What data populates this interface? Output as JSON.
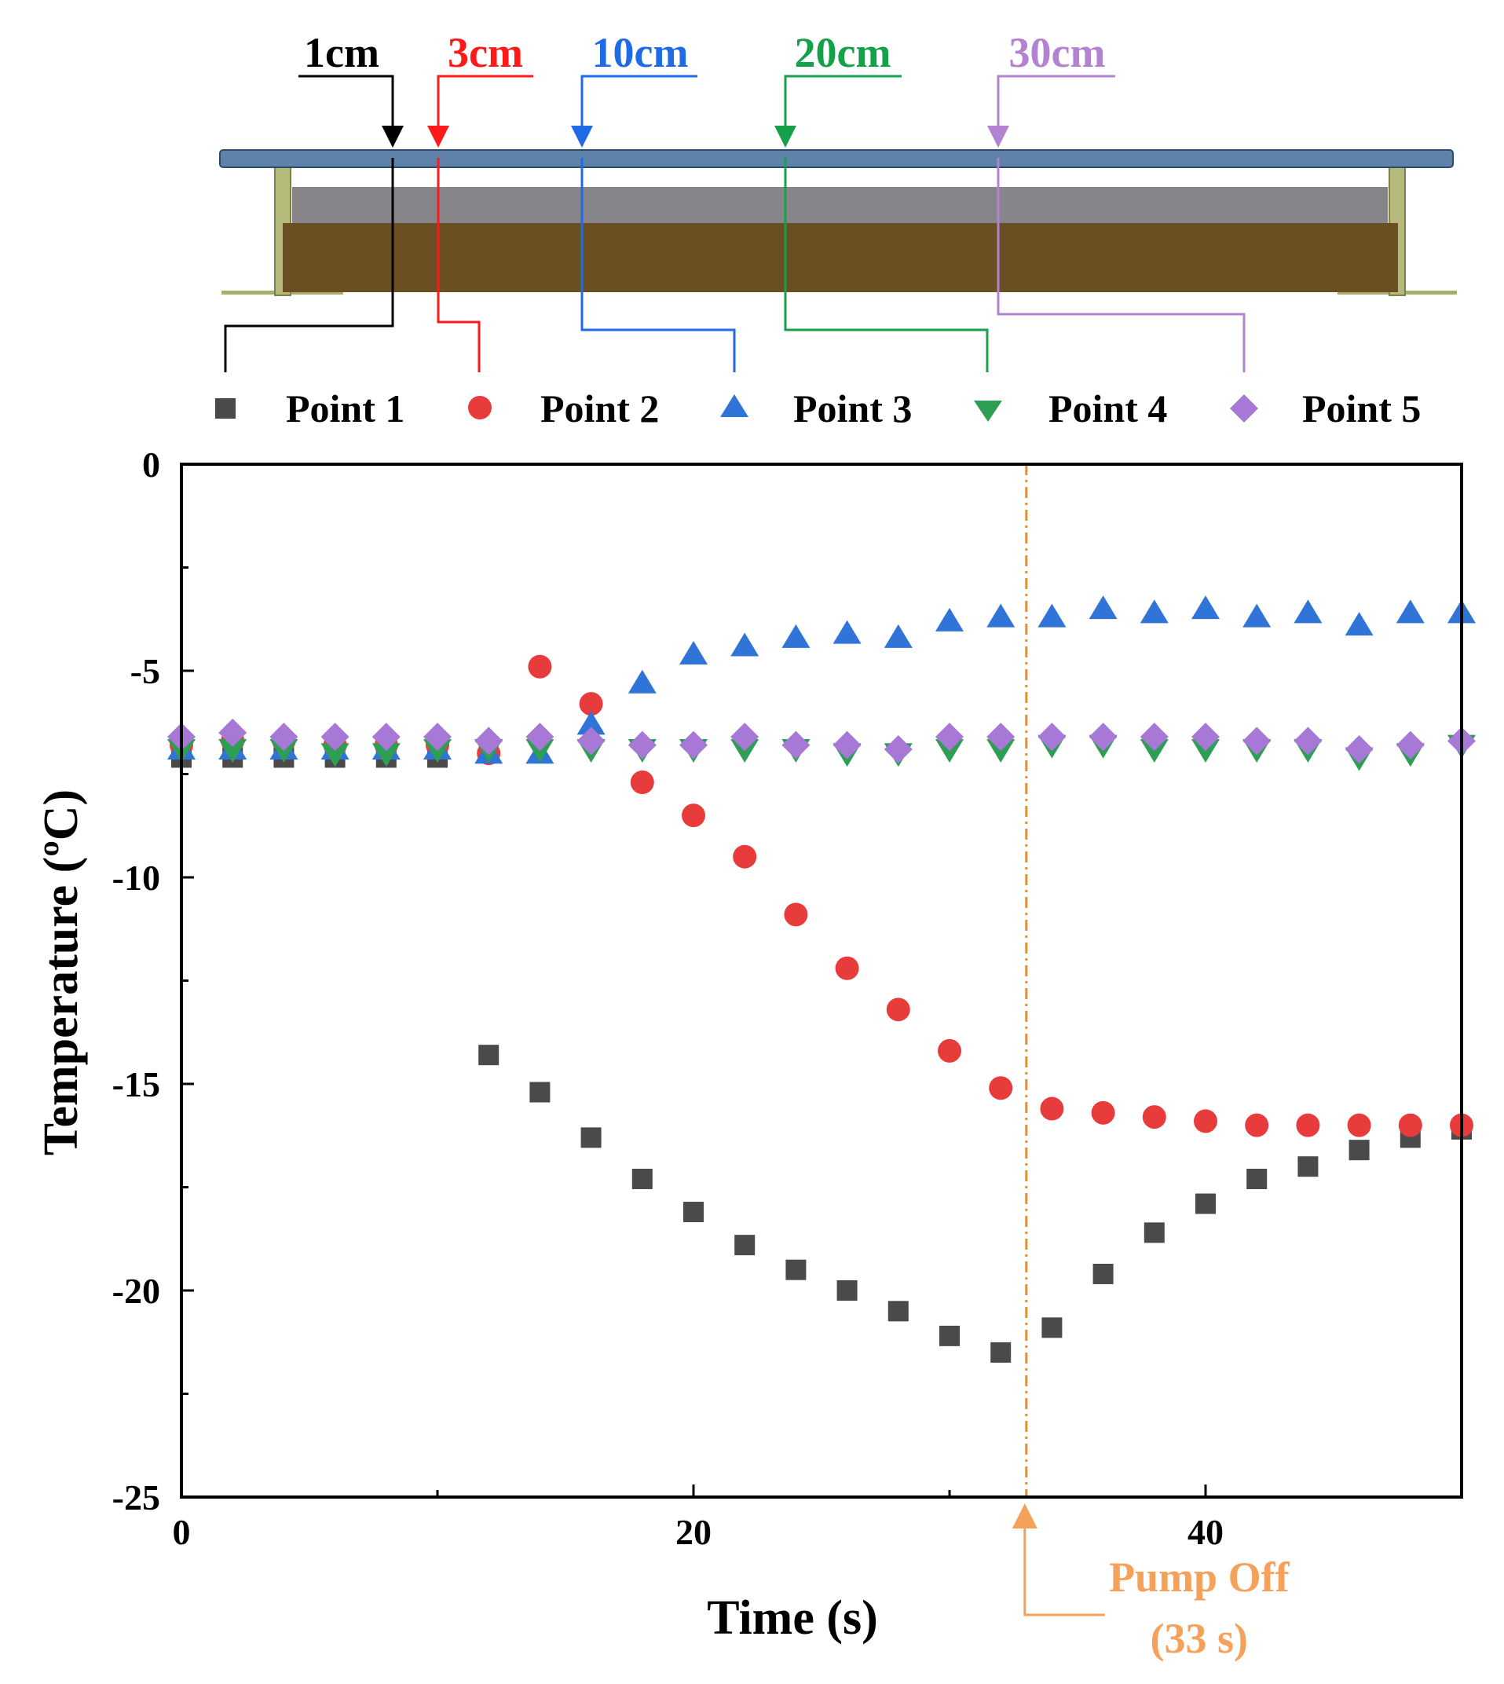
{
  "diagram": {
    "labels": [
      {
        "text": "1cm",
        "color": "#000000"
      },
      {
        "text": "3cm",
        "color": "#ff1a1a"
      },
      {
        "text": "10cm",
        "color": "#1f6ae6"
      },
      {
        "text": "20cm",
        "color": "#15a04a"
      },
      {
        "text": "30cm",
        "color": "#b383d1"
      }
    ]
  },
  "chart_data": {
    "type": "scatter",
    "xlabel": "Time (s)",
    "ylabel": "Temperature (ºC)",
    "xlim": [
      0,
      50
    ],
    "ylim": [
      -25,
      0
    ],
    "xticks": [
      0,
      20,
      40
    ],
    "yticks": [
      0,
      -5,
      -10,
      -15,
      -20,
      -25
    ],
    "x_minor_ticks": [
      10,
      30
    ],
    "y_minor_ticks": [
      -2.5,
      -7.5,
      -12.5,
      -17.5,
      -22.5
    ],
    "x": [
      0,
      2,
      4,
      6,
      8,
      10,
      12,
      14,
      16,
      18,
      20,
      22,
      24,
      26,
      28,
      30,
      32,
      34,
      36,
      38,
      40,
      42,
      44,
      46,
      48,
      50
    ],
    "legend_position": "top",
    "series": [
      {
        "name": "Point 1",
        "marker": "square",
        "color": "#4a4a4a",
        "values": [
          -7.1,
          -7.1,
          -7.1,
          -7.1,
          -7.1,
          -7.1,
          -14.3,
          -15.2,
          -16.3,
          -17.3,
          -18.1,
          -18.9,
          -19.5,
          -20.0,
          -20.5,
          -21.1,
          -21.5,
          -20.9,
          -19.6,
          -18.6,
          -17.9,
          -17.3,
          -17.0,
          -16.6,
          -16.3,
          -16.1
        ]
      },
      {
        "name": "Point 2",
        "marker": "circle",
        "color": "#e83c3c",
        "values": [
          -6.8,
          -6.7,
          -6.7,
          -6.8,
          -6.8,
          -6.8,
          -7.0,
          -4.9,
          -5.8,
          -7.7,
          -8.5,
          -9.5,
          -10.9,
          -12.2,
          -13.2,
          -14.2,
          -15.1,
          -15.6,
          -15.7,
          -15.8,
          -15.9,
          -16.0,
          -16.0,
          -16.0,
          -16.0,
          -16.0
        ]
      },
      {
        "name": "Point 3",
        "marker": "triangle-up",
        "color": "#2f74d6",
        "values": [
          -6.9,
          -6.9,
          -6.9,
          -6.9,
          -6.9,
          -6.9,
          -7.0,
          -7.0,
          -6.3,
          -5.3,
          -4.6,
          -4.4,
          -4.2,
          -4.1,
          -4.2,
          -3.8,
          -3.7,
          -3.7,
          -3.5,
          -3.6,
          -3.5,
          -3.7,
          -3.6,
          -3.9,
          -3.6,
          -3.6
        ]
      },
      {
        "name": "Point 4",
        "marker": "triangle-down",
        "color": "#2e9e55",
        "values": [
          -6.9,
          -6.9,
          -6.9,
          -7.0,
          -7.0,
          -6.9,
          -6.9,
          -6.9,
          -6.9,
          -6.9,
          -6.9,
          -6.9,
          -6.9,
          -7.0,
          -7.0,
          -6.9,
          -6.9,
          -6.8,
          -6.8,
          -6.9,
          -6.9,
          -6.9,
          -6.9,
          -7.1,
          -7.0,
          -6.8
        ]
      },
      {
        "name": "Point 5",
        "marker": "diamond",
        "color": "#a778d6",
        "values": [
          -6.6,
          -6.5,
          -6.6,
          -6.6,
          -6.6,
          -6.6,
          -6.7,
          -6.6,
          -6.7,
          -6.8,
          -6.8,
          -6.6,
          -6.8,
          -6.8,
          -6.9,
          -6.6,
          -6.6,
          -6.6,
          -6.6,
          -6.6,
          -6.6,
          -6.7,
          -6.7,
          -6.9,
          -6.8,
          -6.7
        ]
      }
    ],
    "annotation": {
      "x": 33,
      "line1": "Pump Off",
      "line2": "(33 s)",
      "color": "#f5a15a",
      "line_color": "#f08c1e"
    }
  }
}
